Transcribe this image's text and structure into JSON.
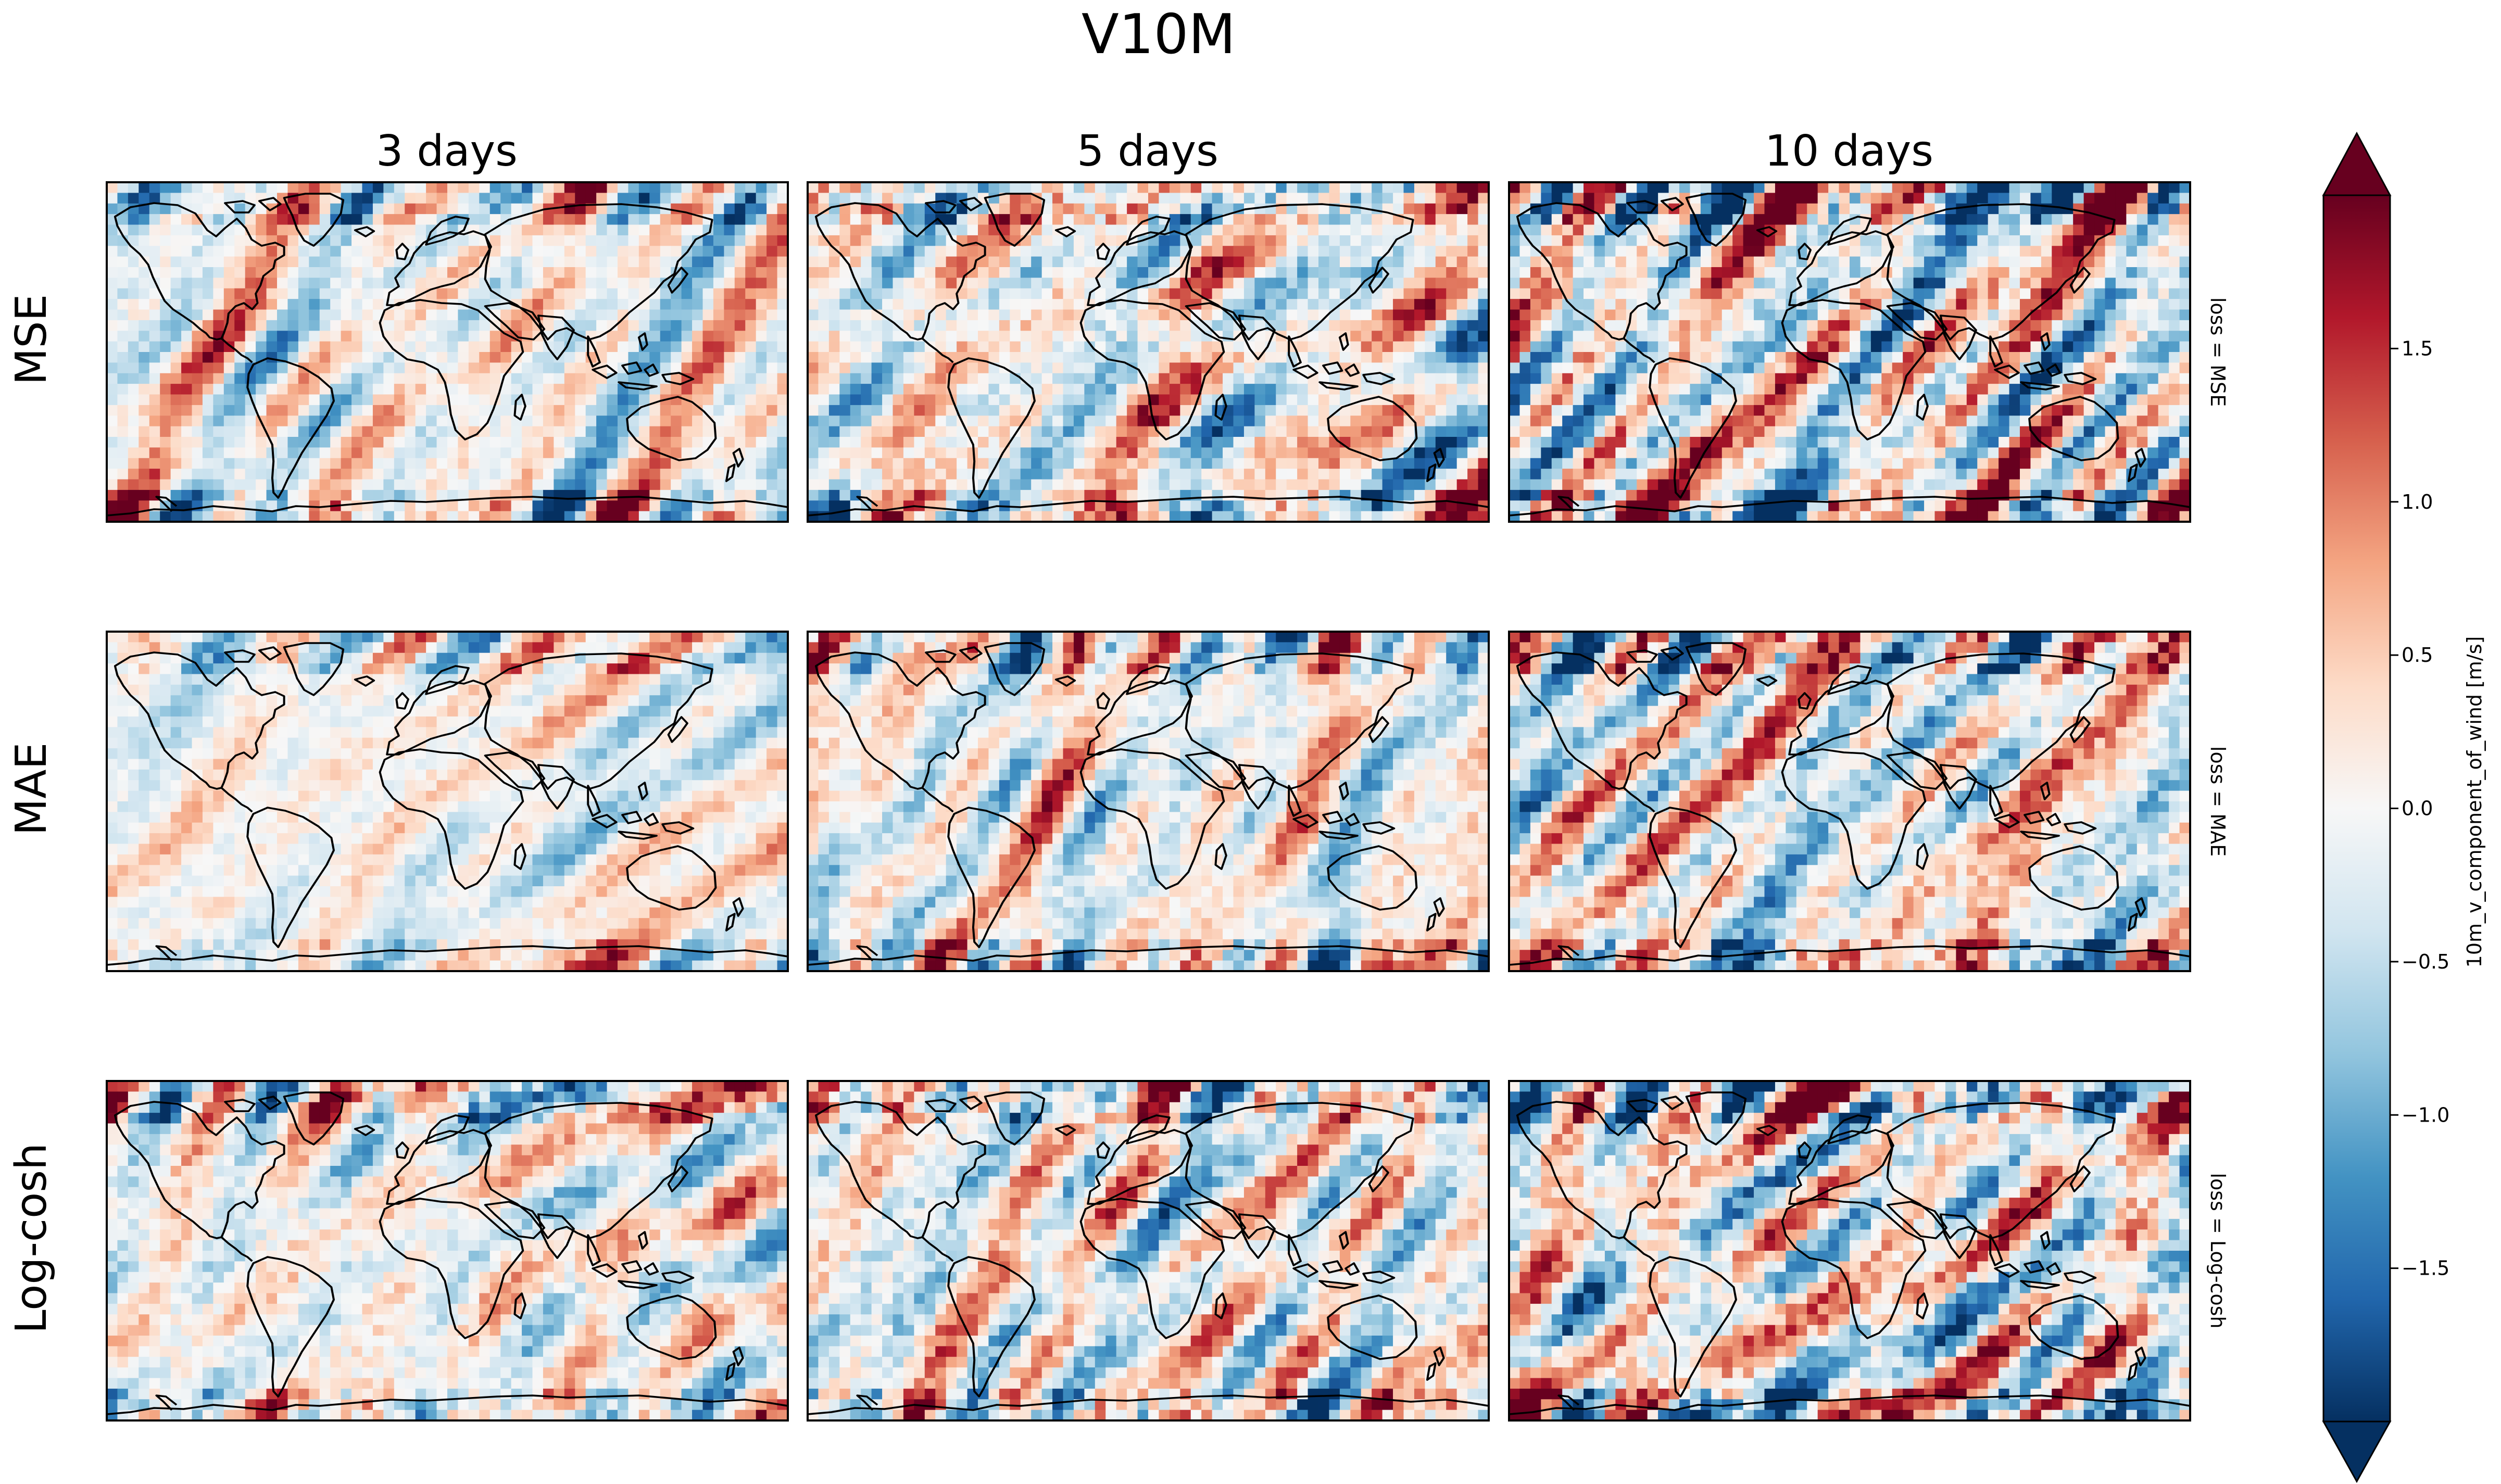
{
  "figure": {
    "title": "V10M"
  },
  "chart_data": {
    "type": "heatmap",
    "title": "V10M",
    "columns": [
      "3 days",
      "5 days",
      "10 days"
    ],
    "rows": [
      "MSE",
      "MAE",
      "Log-cosh"
    ],
    "row_side_labels": [
      "loss = MSE",
      "loss = MAE",
      "loss = Log-cosh"
    ],
    "colormap": "RdBu_r",
    "colorbar": {
      "label": "10m_v_component_of_wind [m/s]",
      "range": [
        -2.0,
        2.0
      ],
      "extend": "both",
      "ticks": [
        -1.5,
        -1.0,
        -0.5,
        0.0,
        0.5,
        1.0,
        1.5
      ],
      "tick_labels": [
        "−1.5",
        "−1.0",
        "−0.5",
        "0.0",
        "0.5",
        "1.0",
        "1.5"
      ]
    },
    "map_projection": "PlateCarree (global, coastlines)",
    "grid_resolution": [
      32,
      64
    ],
    "panel_intensity": [
      [
        0.55,
        0.8,
        1.0
      ],
      [
        0.45,
        0.6,
        0.85
      ],
      [
        0.65,
        0.8,
        1.0
      ]
    ]
  },
  "colors": {
    "cmap_stops": [
      "#053061",
      "#2166ac",
      "#4393c3",
      "#92c5de",
      "#d1e5f0",
      "#f7f7f7",
      "#fddbc7",
      "#f4a582",
      "#d6604d",
      "#b2182b",
      "#67001f"
    ],
    "coastline": "#000000",
    "frame": "#000000"
  }
}
